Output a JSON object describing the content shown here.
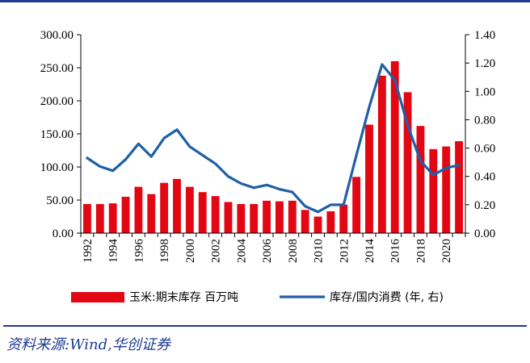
{
  "chart_data": {
    "type": "bar+line",
    "categories": [
      "1992",
      "1993",
      "1994",
      "1995",
      "1996",
      "1997",
      "1998",
      "1999",
      "2000",
      "2001",
      "2002",
      "2003",
      "2004",
      "2005",
      "2006",
      "2007",
      "2008",
      "2009",
      "2010",
      "2011",
      "2012",
      "2013",
      "2014",
      "2015",
      "2016",
      "2017",
      "2018",
      "2019",
      "2020",
      "2021"
    ],
    "x_tick_labels": [
      "1992",
      "1994",
      "1996",
      "1998",
      "2000",
      "2002",
      "2004",
      "2006",
      "2008",
      "2010",
      "2012",
      "2014",
      "2016",
      "2018",
      "2020"
    ],
    "y_left": {
      "ticks": [
        "0.00",
        "50.00",
        "100.00",
        "150.00",
        "200.00",
        "250.00",
        "300.00"
      ],
      "range": [
        0,
        300
      ]
    },
    "y_right": {
      "ticks": [
        "0.00",
        "0.20",
        "0.40",
        "0.60",
        "0.80",
        "1.00",
        "1.20",
        "1.40"
      ],
      "range": [
        0,
        1.4
      ]
    },
    "series": [
      {
        "name": "玉米:期末库存 百万吨",
        "kind": "bar",
        "axis": "left",
        "color": "#e30613",
        "values": [
          44,
          44,
          45,
          55,
          70,
          59,
          76,
          82,
          70,
          62,
          56,
          47,
          44,
          44,
          49,
          48,
          49,
          35,
          25,
          33,
          43,
          85,
          164,
          238,
          260,
          213,
          162,
          127,
          131,
          139
        ]
      },
      {
        "name": "库存/国内消费 (年, 右)",
        "kind": "line",
        "axis": "right",
        "color": "#1f5fa8",
        "values": [
          0.53,
          0.47,
          0.44,
          0.52,
          0.63,
          0.54,
          0.67,
          0.73,
          0.61,
          0.55,
          0.49,
          0.4,
          0.35,
          0.32,
          0.34,
          0.31,
          0.29,
          0.19,
          0.15,
          0.2,
          0.2,
          0.55,
          0.89,
          1.19,
          1.08,
          0.76,
          0.51,
          0.41,
          0.46,
          0.48
        ]
      }
    ],
    "legend_position": "bottom",
    "grid": false
  },
  "source": "资料来源:Wind,华创证券"
}
